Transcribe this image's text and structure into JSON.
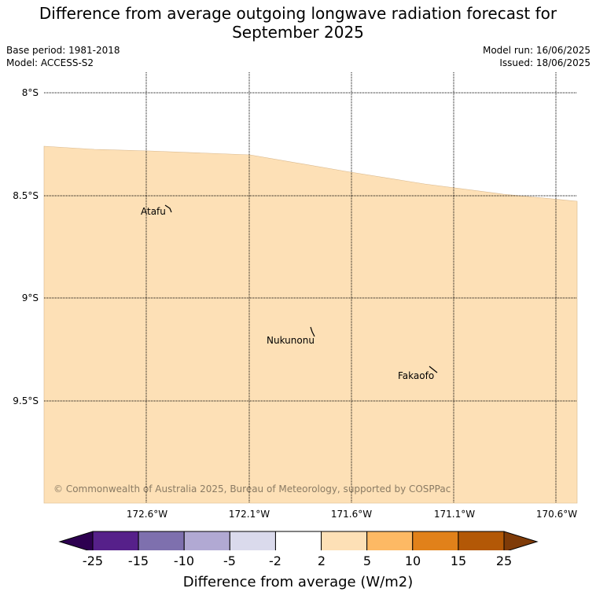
{
  "title_line1": "Difference from average outgoing longwave radiation forecast for",
  "title_line2": "September 2025",
  "meta": {
    "base_period": "Base period: 1981-2018",
    "model": "Model: ACCESS-S2",
    "model_run": "Model run: 16/06/2025",
    "issued": "Issued: 18/06/2025"
  },
  "map": {
    "lat_labels": [
      "8°S",
      "8.5°S",
      "9°S",
      "9.5°S"
    ],
    "lon_labels": [
      "172.6°W",
      "172.1°W",
      "171.6°W",
      "171.1°W",
      "170.6°W"
    ],
    "places": [
      "Atafu",
      "Nukunonu",
      "Fakaofo"
    ],
    "copyright": "© Commonwealth of Australia 2025, Bureau of Meteorology, supported by COSPPac",
    "field_color": "#fde0b6",
    "above_field_color": "#ffffff"
  },
  "colorbar": {
    "label": "Difference from average (W/m2)",
    "ticks": [
      "-25",
      "-15",
      "-10",
      "-5",
      "-2",
      "2",
      "5",
      "10",
      "15",
      "25"
    ],
    "colors": [
      "#2d0050",
      "#56208a",
      "#7e70ae",
      "#b1a9d3",
      "#dadaec",
      "#ffffff",
      "#fde0b6",
      "#fdb964",
      "#e1811a",
      "#b35806",
      "#7f3b08"
    ]
  }
}
